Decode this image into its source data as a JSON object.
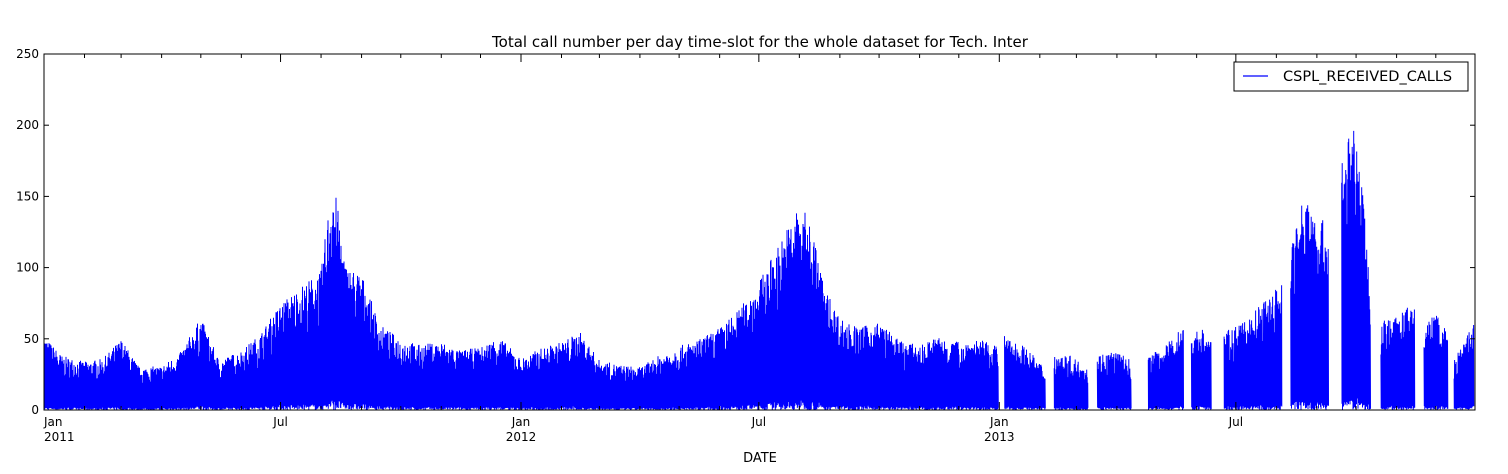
{
  "chart_data": {
    "type": "line",
    "title": "Total call number per day time-slot for the whole dataset for Tech. Inter",
    "xlabel": "DATE",
    "ylabel": "",
    "ylim": [
      0,
      250
    ],
    "xlim": [
      "2011-01-01",
      "2013-12-31"
    ],
    "yticks": [
      0,
      50,
      100,
      150,
      200,
      250
    ],
    "xticks": [
      {
        "date": "2011-01-01",
        "label": "Jan",
        "sublabel": "2011"
      },
      {
        "date": "2011-07-01",
        "label": "Jul",
        "sublabel": ""
      },
      {
        "date": "2012-01-01",
        "label": "Jan",
        "sublabel": "2012"
      },
      {
        "date": "2012-07-01",
        "label": "Jul",
        "sublabel": ""
      },
      {
        "date": "2013-01-01",
        "label": "Jan",
        "sublabel": "2013"
      },
      {
        "date": "2013-07-01",
        "label": "Jul",
        "sublabel": ""
      }
    ],
    "legend_position": "top-right",
    "grid": false,
    "series": [
      {
        "name": "CSPL_RECEIVED_CALLS",
        "color": "#0000ff",
        "description_of_envelope": "approximate per-segment maximum daily-slot call count; minimum per segment is 0",
        "segments": [
          {
            "x": [
              "2011-01-01",
              "2011-01-15",
              "2011-02-01",
              "2011-02-15",
              "2011-03-01",
              "2011-03-15",
              "2011-04-01",
              "2011-04-15",
              "2011-05-01",
              "2011-05-15",
              "2011-06-01",
              "2011-06-15",
              "2011-07-01",
              "2011-07-15",
              "2011-08-01",
              "2011-08-10",
              "2011-08-20",
              "2011-09-01",
              "2011-09-15",
              "2011-10-01",
              "2011-10-15",
              "2011-11-01",
              "2011-11-15",
              "2011-12-01",
              "2011-12-15",
              "2012-01-01",
              "2012-01-15",
              "2012-02-01",
              "2012-02-15",
              "2012-03-01",
              "2012-03-15",
              "2012-04-01",
              "2012-04-15",
              "2012-05-01",
              "2012-05-15",
              "2012-06-01",
              "2012-06-15",
              "2012-07-01",
              "2012-07-15",
              "2012-08-01",
              "2012-08-10",
              "2012-08-20",
              "2012-09-01",
              "2012-09-15",
              "2012-10-01",
              "2012-10-15",
              "2012-11-01",
              "2012-11-15",
              "2012-12-01",
              "2012-12-15",
              "2012-12-31"
            ],
            "y": [
              52,
              38,
              34,
              36,
              50,
              30,
              31,
              40,
              65,
              35,
              42,
              53,
              75,
              86,
              98,
              166,
              102,
              96,
              60,
              50,
              46,
              48,
              42,
              44,
              52,
              36,
              43,
              48,
              55,
              35,
              32,
              30,
              38,
              45,
              49,
              58,
              70,
              90,
              115,
              145,
              132,
              87,
              65,
              58,
              62,
              50,
              45,
              52,
              48,
              50,
              45
            ]
          },
          {
            "x": [
              "2013-01-05",
              "2013-01-20",
              "2013-02-05"
            ],
            "y": [
              52,
              45,
              30
            ]
          },
          {
            "x": [
              "2013-02-12",
              "2013-02-25",
              "2013-03-10"
            ],
            "y": [
              40,
              38,
              30
            ]
          },
          {
            "x": [
              "2013-03-17",
              "2013-03-30",
              "2013-04-12"
            ],
            "y": [
              39,
              42,
              35
            ]
          },
          {
            "x": [
              "2013-04-25",
              "2013-05-08",
              "2013-05-22"
            ],
            "y": [
              38,
              45,
              60
            ]
          },
          {
            "x": [
              "2013-05-28",
              "2013-06-05",
              "2013-06-12"
            ],
            "y": [
              55,
              58,
              50
            ]
          },
          {
            "x": [
              "2013-06-22",
              "2013-07-05",
              "2013-07-25",
              "2013-08-05"
            ],
            "y": [
              55,
              60,
              79,
              90
            ]
          },
          {
            "x": [
              "2013-08-12",
              "2013-08-22",
              "2013-09-01",
              "2013-09-10"
            ],
            "y": [
              125,
              150,
              142,
              125
            ]
          },
          {
            "x": [
              "2013-09-20",
              "2013-09-28",
              "2013-10-05",
              "2013-10-12"
            ],
            "y": [
              183,
              202,
              168,
              84
            ]
          },
          {
            "x": [
              "2013-10-20",
              "2013-11-01",
              "2013-11-15"
            ],
            "y": [
              65,
              65,
              77
            ]
          },
          {
            "x": [
              "2013-11-22",
              "2013-12-01",
              "2013-12-10"
            ],
            "y": [
              60,
              69,
              55
            ]
          },
          {
            "x": [
              "2013-12-15",
              "2013-12-22",
              "2013-12-30"
            ],
            "y": [
              35,
              47,
              62
            ]
          }
        ]
      }
    ]
  }
}
